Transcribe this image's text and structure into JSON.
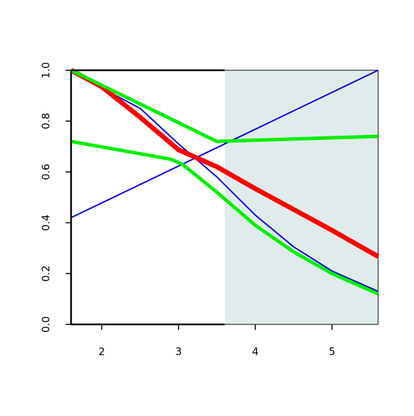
{
  "chart_data": {
    "type": "line",
    "xlim": [
      1.6,
      5.6
    ],
    "ylim": [
      0,
      1
    ],
    "xticks": [
      2,
      3,
      4,
      5
    ],
    "yticks": [
      {
        "value": 0,
        "label": "0.0"
      },
      0.2,
      0.4,
      0.6,
      0.8,
      {
        "value": 1,
        "label": "1.0"
      }
    ],
    "shade": {
      "x": [
        3.6,
        5.6
      ],
      "color": "#e0ecec"
    },
    "series": [
      {
        "color": "#0000dd",
        "width": 2,
        "x": [
          1.6,
          5.6
        ],
        "values": [
          0.42,
          1.0
        ]
      },
      {
        "color": "#0000dd",
        "width": 2,
        "x": [
          1.6,
          2,
          2.5,
          3,
          3.5,
          4,
          4.5,
          5,
          5.6
        ],
        "values": [
          1.0,
          0.93,
          0.85,
          0.71,
          0.58,
          0.43,
          0.305,
          0.21,
          0.13
        ]
      },
      {
        "color": "#ff0000",
        "width": 7,
        "x": [
          1.6,
          2,
          2.5,
          3,
          3.5,
          4,
          4.5,
          5,
          5.6
        ],
        "values": [
          1.0,
          0.935,
          0.815,
          0.687,
          0.62,
          0.534,
          0.452,
          0.37,
          0.267
        ]
      },
      {
        "color": "#00ee00",
        "width": 5,
        "x": [
          1.6,
          3.5,
          5.6
        ],
        "values": [
          1.0,
          0.72,
          0.74
        ]
      },
      {
        "color": "#00ee00",
        "width": 5,
        "x": [
          1.6,
          2.9,
          3.05,
          3.5,
          4,
          4.5,
          5,
          5.6
        ],
        "values": [
          0.72,
          0.65,
          0.63,
          0.52,
          0.39,
          0.285,
          0.2,
          0.12
        ]
      }
    ]
  }
}
